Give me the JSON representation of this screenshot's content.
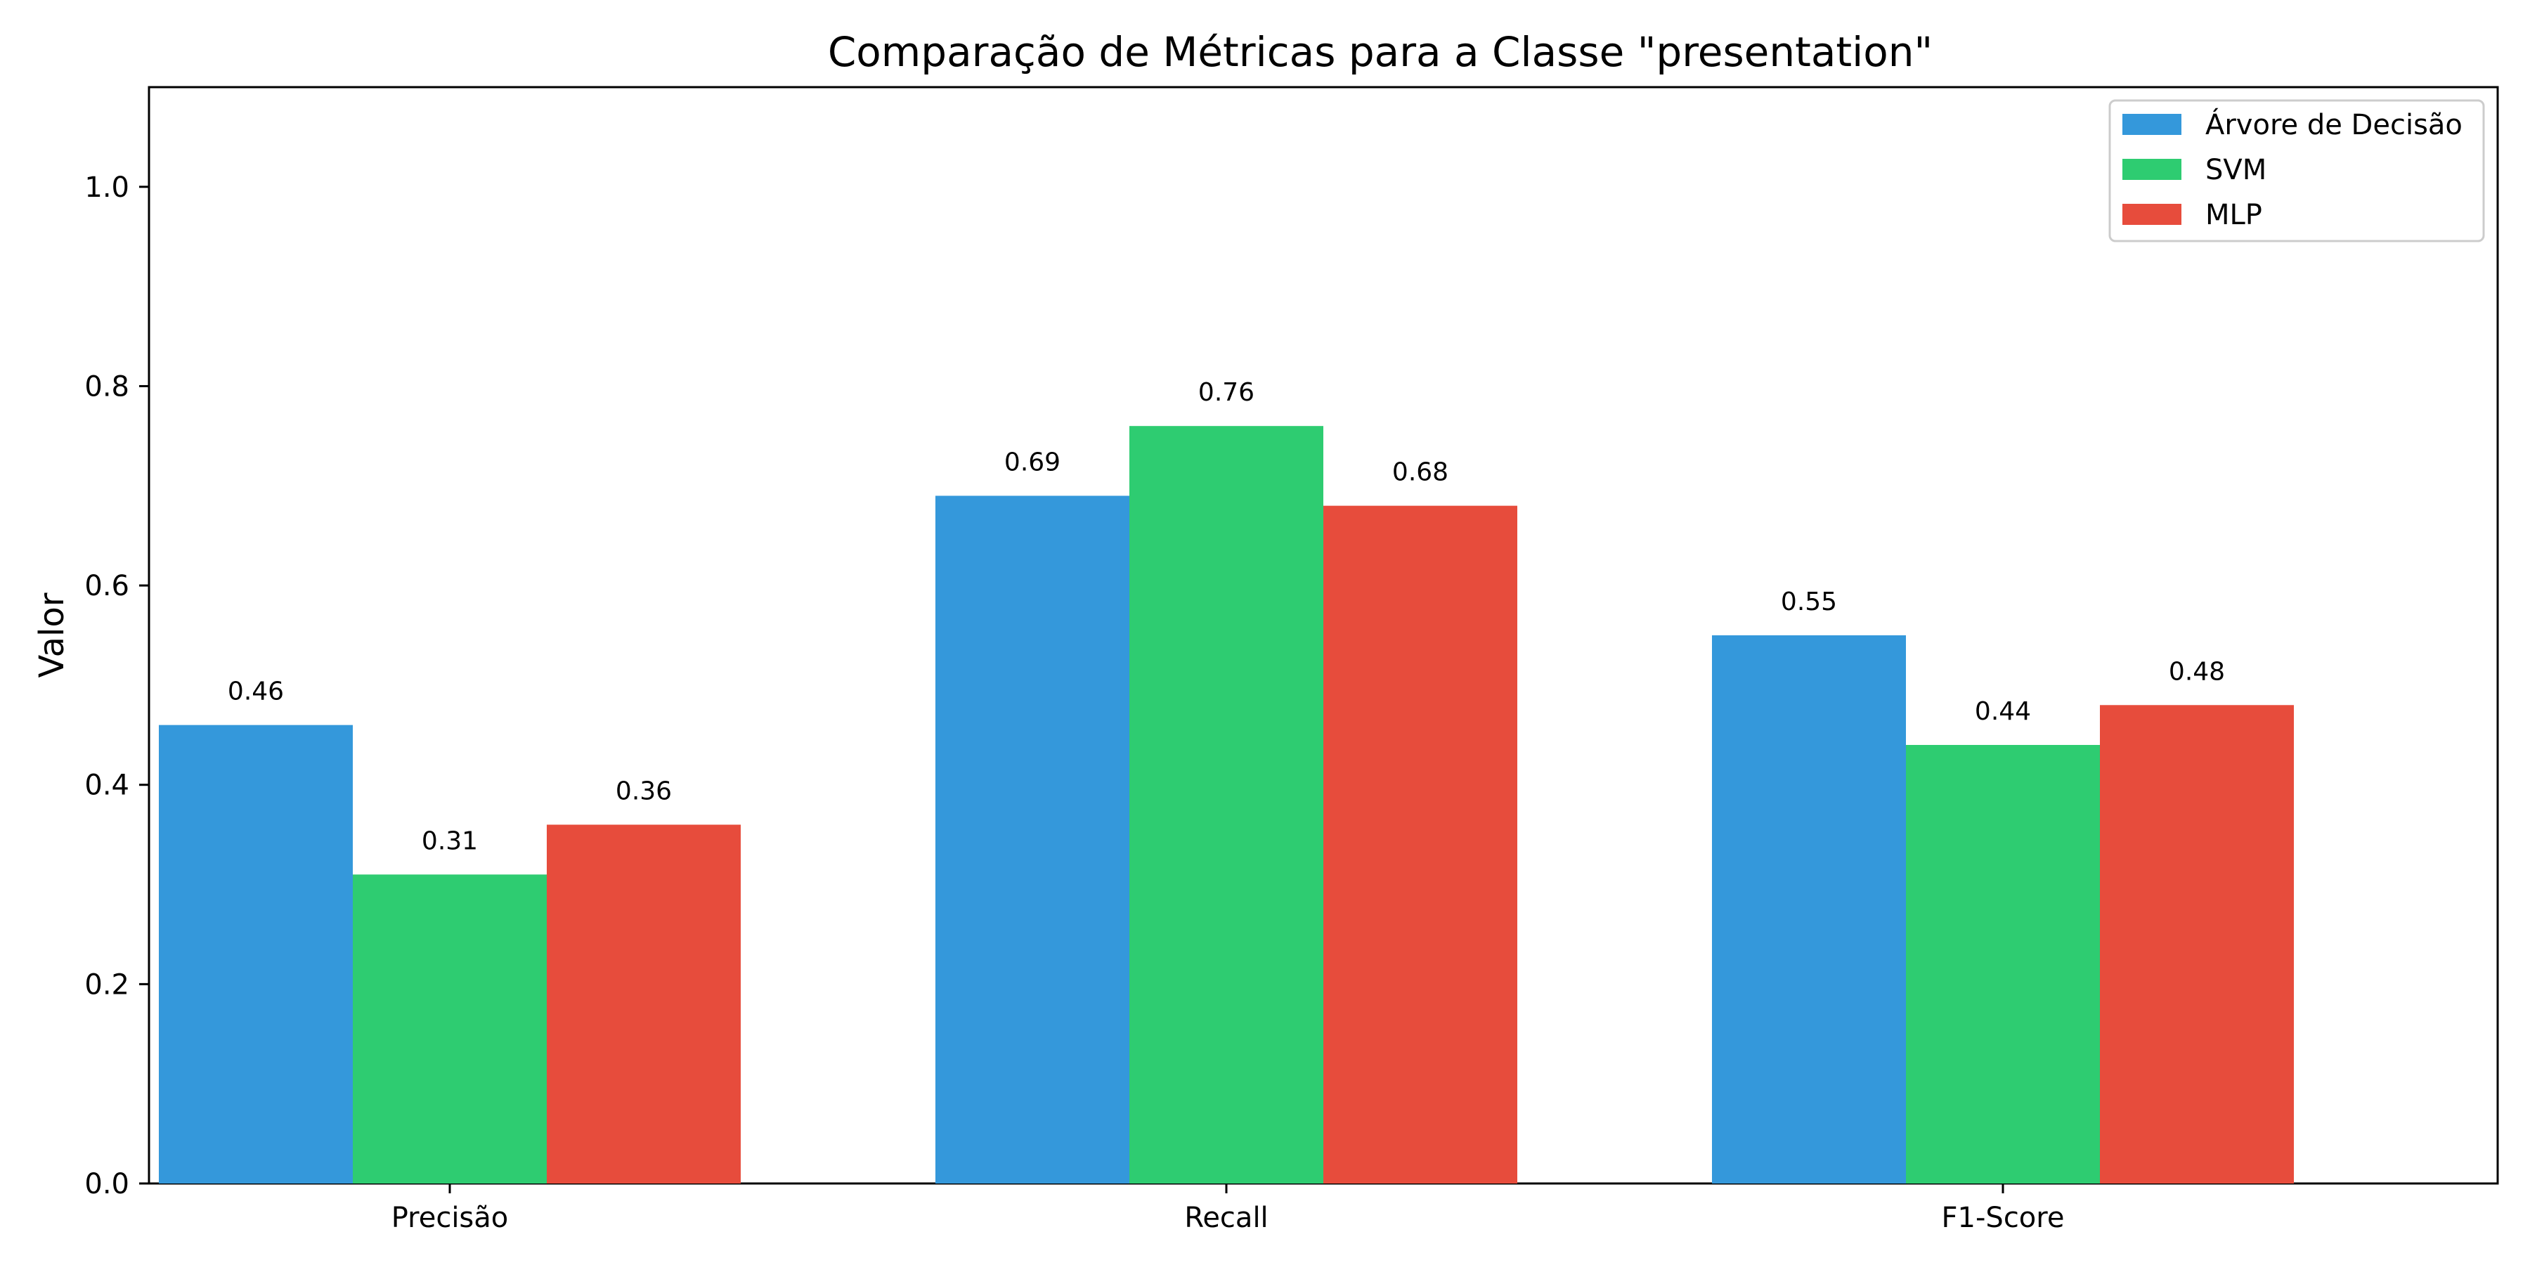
{
  "chart_data": {
    "type": "bar",
    "title": "Comparação de Métricas para a Classe \"presentation\"",
    "xlabel": "",
    "ylabel": "Valor",
    "categories": [
      "Precisão",
      "Recall",
      "F1-Score"
    ],
    "series": [
      {
        "name": "Árvore de Decisão",
        "color": "#3498db",
        "values": [
          0.46,
          0.69,
          0.55
        ]
      },
      {
        "name": "SVM",
        "color": "#2ecc71",
        "values": [
          0.31,
          0.76,
          0.44
        ]
      },
      {
        "name": "MLP",
        "color": "#e74c3c",
        "values": [
          0.36,
          0.68,
          0.48
        ]
      }
    ],
    "value_labels": [
      [
        "0.46",
        "0.69",
        "0.55"
      ],
      [
        "0.31",
        "0.76",
        "0.44"
      ],
      [
        "0.36",
        "0.68",
        "0.48"
      ]
    ],
    "ylim": [
      0,
      1.1
    ],
    "yticks": [
      0.0,
      0.2,
      0.4,
      0.6,
      0.8,
      1.0
    ],
    "ytick_labels": [
      "0.0",
      "0.2",
      "0.4",
      "0.6",
      "0.8",
      "1.0"
    ],
    "grid": false,
    "legend_position": "top-right"
  }
}
